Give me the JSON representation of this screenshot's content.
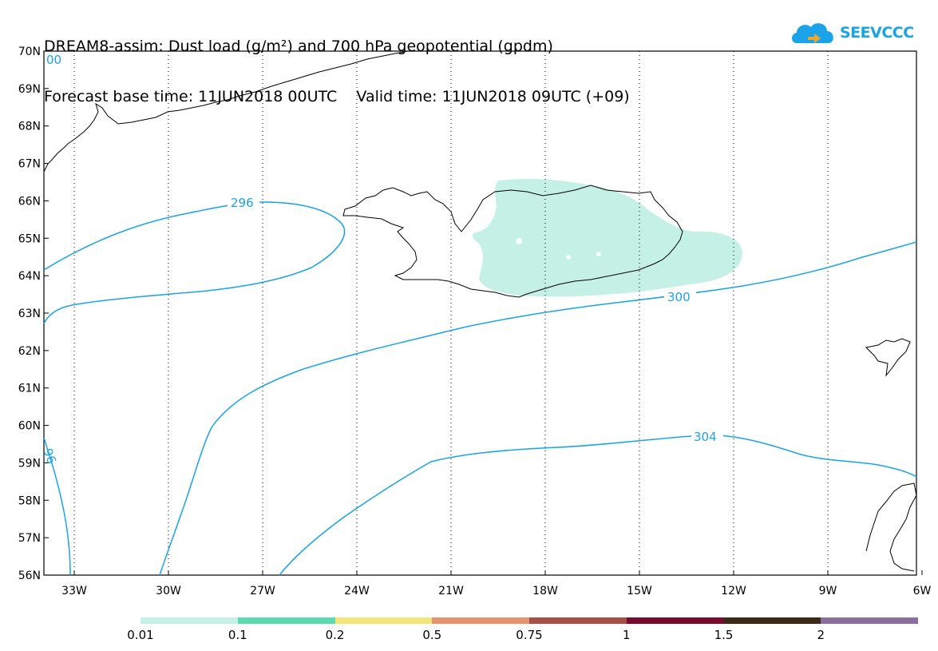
{
  "header": {
    "line1": "DREAM8-assim: Dust load (g/m²) and 700 hPa geopotential (gpdm)",
    "line2": "Forecast base time: 11JUN2018 00UTC    Valid time: 11JUN2018 09UTC (+09)"
  },
  "logo": {
    "text": "SEEVCCC",
    "icon": "cloud-arrow-icon",
    "color": "#1aa3e8"
  },
  "map": {
    "lat_labels": [
      "70N",
      "69N",
      "68N",
      "67N",
      "66N",
      "65N",
      "64N",
      "63N",
      "62N",
      "61N",
      "60N",
      "59N",
      "58N",
      "57N",
      "56N"
    ],
    "lon_labels": [
      "33W",
      "30W",
      "27W",
      "24W",
      "21W",
      "18W",
      "15W",
      "12W",
      "9W",
      "6W"
    ],
    "contour_labels": [
      "00",
      "296",
      "300",
      "304",
      "96"
    ],
    "contour_color": "#1aa3e8",
    "dust_color": "#c4f0e6",
    "coast_color": "#000000"
  },
  "colorbar": {
    "colors": [
      "#c4f0e6",
      "#5cdbb0",
      "#f3e678",
      "#e8946a",
      "#a84f45",
      "#7a0a2e",
      "#3b2a17",
      "#8c6e9e"
    ],
    "labels": [
      "0.01",
      "0.1",
      "0.2",
      "0.5",
      "0.75",
      "1",
      "1.5",
      "2"
    ]
  }
}
